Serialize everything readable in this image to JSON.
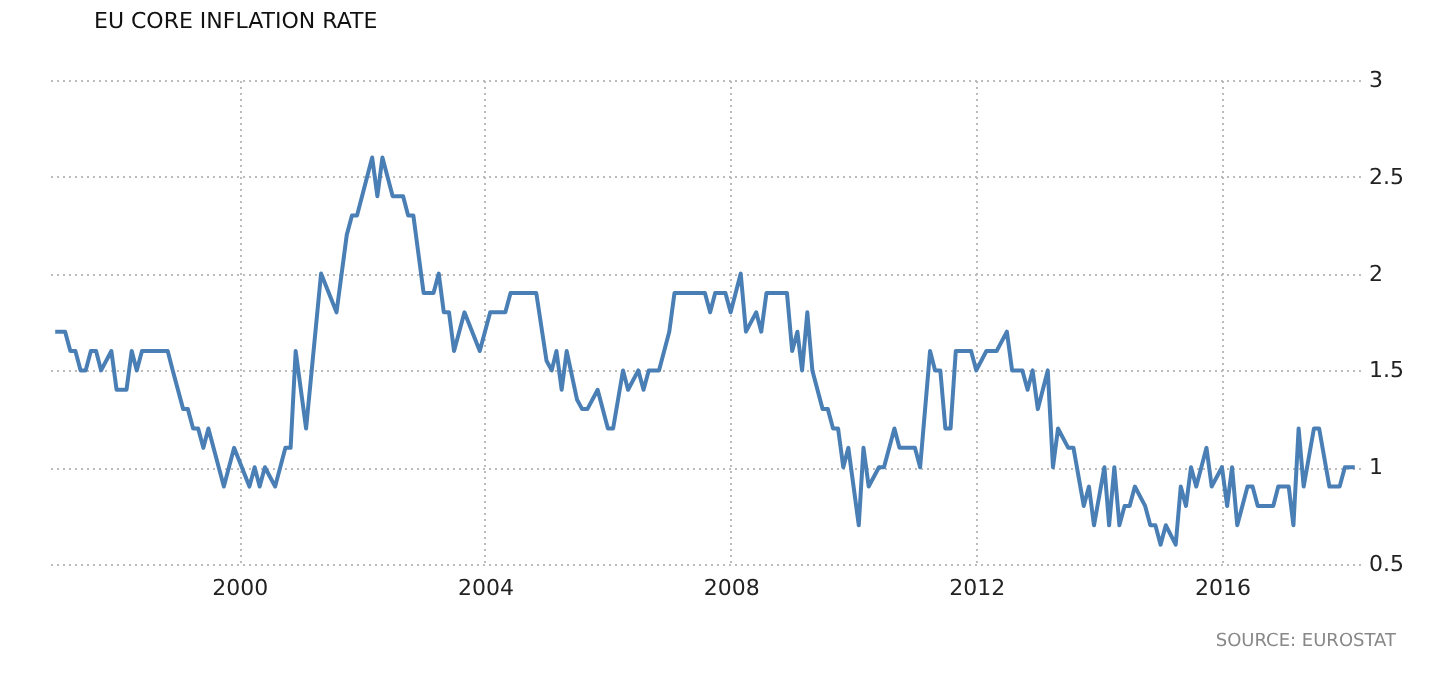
{
  "chart_data": {
    "type": "line",
    "title": "EU CORE INFLATION RATE",
    "annotations": [
      "SOURCE: EUROSTAT"
    ],
    "x": [
      "1997-01",
      "1997-03",
      "1997-04",
      "1997-05",
      "1997-06",
      "1997-07",
      "1997-08",
      "1997-09",
      "1997-10",
      "1997-12",
      "1998-01",
      "1998-03",
      "1998-04",
      "1998-05",
      "1998-06",
      "1998-11",
      "1998-12",
      "1999-02",
      "1999-03",
      "1999-04",
      "1999-05",
      "1999-06",
      "1999-07",
      "1999-10",
      "1999-12",
      "2000-03",
      "2000-04",
      "2000-05",
      "2000-06",
      "2000-08",
      "2000-10",
      "2000-11",
      "2000-12",
      "2001-02",
      "2001-05",
      "2001-08",
      "2001-10",
      "2001-11",
      "2001-12",
      "2002-03",
      "2002-04",
      "2002-05",
      "2002-07",
      "2002-09",
      "2002-10",
      "2002-11",
      "2003-01",
      "2003-03",
      "2003-04",
      "2003-05",
      "2003-06",
      "2003-07",
      "2003-09",
      "2003-12",
      "2004-02",
      "2004-05",
      "2004-06",
      "2004-11",
      "2005-01",
      "2005-02",
      "2005-03",
      "2005-04",
      "2005-05",
      "2005-07",
      "2005-08",
      "2005-09",
      "2005-11",
      "2006-01",
      "2006-02",
      "2006-04",
      "2006-05",
      "2006-07",
      "2006-08",
      "2006-09",
      "2006-11",
      "2007-01",
      "2007-02",
      "2007-08",
      "2007-09",
      "2007-10",
      "2007-12",
      "2008-01",
      "2008-03",
      "2008-04",
      "2008-06",
      "2008-07",
      "2008-08",
      "2008-12",
      "2009-01",
      "2009-02",
      "2009-03",
      "2009-04",
      "2009-05",
      "2009-07",
      "2009-08",
      "2009-09",
      "2009-10",
      "2009-11",
      "2009-12",
      "2010-02",
      "2010-03",
      "2010-04",
      "2010-06",
      "2010-07",
      "2010-09",
      "2010-10",
      "2011-01",
      "2011-02",
      "2011-04",
      "2011-05",
      "2011-06",
      "2011-07",
      "2011-08",
      "2011-09",
      "2011-12",
      "2012-01",
      "2012-03",
      "2012-05",
      "2012-07",
      "2012-08",
      "2012-10",
      "2012-11",
      "2012-12",
      "2013-01",
      "2013-03",
      "2013-04",
      "2013-05",
      "2013-07",
      "2013-08",
      "2013-10",
      "2013-11",
      "2013-12",
      "2014-02",
      "2014-03",
      "2014-04",
      "2014-05",
      "2014-06",
      "2014-07",
      "2014-08",
      "2014-10",
      "2014-11",
      "2014-12",
      "2015-01",
      "2015-02",
      "2015-04",
      "2015-05",
      "2015-06",
      "2015-07",
      "2015-08",
      "2015-10",
      "2015-11",
      "2016-01",
      "2016-02",
      "2016-03",
      "2016-04",
      "2016-06",
      "2016-07",
      "2016-08",
      "2016-11",
      "2016-12",
      "2017-02",
      "2017-03",
      "2017-04",
      "2017-05",
      "2017-07",
      "2017-08",
      "2017-10",
      "2017-12",
      "2018-01",
      "2018-03"
    ],
    "series": [
      {
        "color": "#4a7fb5",
        "values": [
          1.7,
          1.7,
          1.6,
          1.6,
          1.5,
          1.5,
          1.6,
          1.6,
          1.5,
          1.6,
          1.4,
          1.4,
          1.6,
          1.5,
          1.6,
          1.6,
          1.5,
          1.3,
          1.3,
          1.2,
          1.2,
          1.1,
          1.2,
          0.9,
          1.1,
          0.9,
          1.0,
          0.9,
          1.0,
          0.9,
          1.1,
          1.1,
          1.6,
          1.2,
          2.0,
          1.8,
          2.2,
          2.3,
          2.3,
          2.6,
          2.4,
          2.6,
          2.4,
          2.4,
          2.3,
          2.3,
          1.9,
          1.9,
          2.0,
          1.8,
          1.8,
          1.6,
          1.8,
          1.6,
          1.8,
          1.8,
          1.9,
          1.9,
          1.55,
          1.5,
          1.6,
          1.4,
          1.6,
          1.35,
          1.3,
          1.3,
          1.4,
          1.2,
          1.2,
          1.5,
          1.4,
          1.5,
          1.4,
          1.5,
          1.5,
          1.7,
          1.9,
          1.9,
          1.8,
          1.9,
          1.9,
          1.8,
          2.0,
          1.7,
          1.8,
          1.7,
          1.9,
          1.9,
          1.6,
          1.7,
          1.5,
          1.8,
          1.5,
          1.3,
          1.3,
          1.2,
          1.2,
          1.0,
          1.1,
          0.7,
          1.1,
          0.9,
          1.0,
          1.0,
          1.2,
          1.1,
          1.1,
          1.0,
          1.6,
          1.5,
          1.5,
          1.2,
          1.2,
          1.6,
          1.6,
          1.5,
          1.6,
          1.6,
          1.7,
          1.5,
          1.5,
          1.4,
          1.5,
          1.3,
          1.5,
          1.0,
          1.2,
          1.1,
          1.1,
          0.8,
          0.9,
          0.7,
          1.0,
          0.7,
          1.0,
          0.7,
          0.8,
          0.8,
          0.9,
          0.8,
          0.7,
          0.7,
          0.6,
          0.7,
          0.6,
          0.9,
          0.8,
          1.0,
          0.9,
          1.1,
          0.9,
          1.0,
          0.8,
          1.0,
          0.7,
          0.9,
          0.9,
          0.8,
          0.8,
          0.9,
          0.9,
          0.7,
          1.2,
          0.9,
          1.2,
          1.2,
          0.9,
          0.9,
          1.0,
          1.0
        ]
      }
    ],
    "xlim": [
      "1996-12",
      "2018-04"
    ],
    "xticks": [
      "2000",
      "2004",
      "2008",
      "2012",
      "2016"
    ],
    "ylim": [
      0.5,
      3
    ],
    "yticks": [
      0.5,
      1,
      1.5,
      2,
      2.5,
      3
    ],
    "grid": true,
    "marker": "none",
    "line_style": "solid"
  }
}
